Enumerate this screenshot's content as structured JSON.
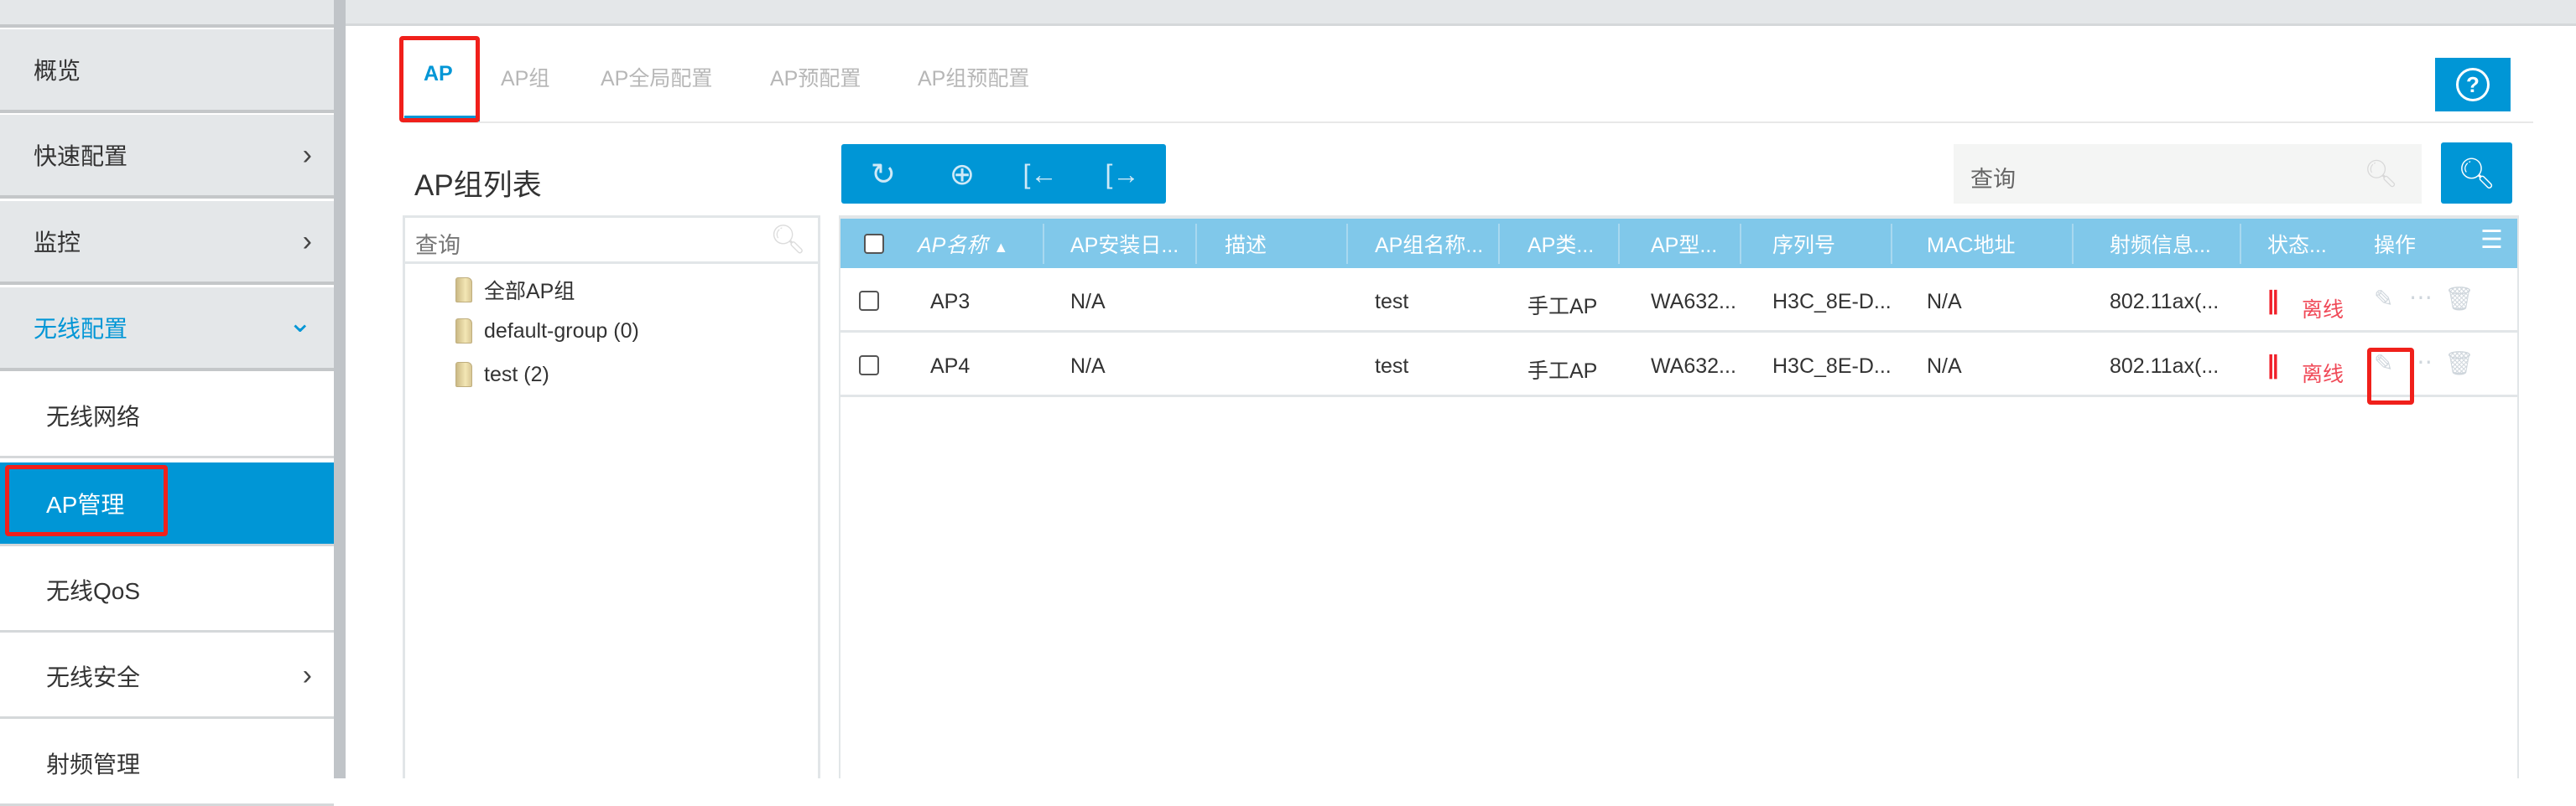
{
  "sidebar": {
    "items": [
      {
        "label": "概览"
      },
      {
        "label": "快速配置",
        "chevron": "›"
      },
      {
        "label": "监控",
        "chevron": "›"
      },
      {
        "label": "无线配置",
        "chevron": "⌄"
      },
      {
        "label": "无线网络"
      },
      {
        "label": "AP管理"
      },
      {
        "label": "无线QoS"
      },
      {
        "label": "无线安全",
        "chevron": "›"
      },
      {
        "label": "射频管理"
      }
    ]
  },
  "tabs": [
    {
      "label": "AP"
    },
    {
      "label": "AP组"
    },
    {
      "label": "AP全局配置"
    },
    {
      "label": "AP预配置"
    },
    {
      "label": "AP组预配置"
    }
  ],
  "help_icon": "?",
  "tree": {
    "title": "AP组列表",
    "search_placeholder": "查询",
    "nodes": [
      {
        "label": "全部AP组"
      },
      {
        "label": "default-group (0)"
      },
      {
        "label": "test (2)"
      }
    ]
  },
  "toolbar": {
    "icons": [
      "refresh-icon",
      "add-icon",
      "import-icon",
      "export-icon"
    ]
  },
  "search": {
    "placeholder": "查询"
  },
  "table": {
    "headers": [
      "AP名称",
      "AP安装日...",
      "描述",
      "AP组名称...",
      "AP类...",
      "AP型...",
      "序列号",
      "MAC地址",
      "射频信息...",
      "状态...",
      "操作"
    ],
    "sort_indicator": "▲",
    "rows": [
      {
        "name": "AP3",
        "install_date": "N/A",
        "desc": "",
        "group": "test",
        "type": "手工AP",
        "model": "WA632...",
        "serial": "H3C_8E-D...",
        "mac": "N/A",
        "radio": "802.11ax(...",
        "status": "离线"
      },
      {
        "name": "AP4",
        "install_date": "N/A",
        "desc": "",
        "group": "test",
        "type": "手工AP",
        "model": "WA632...",
        "serial": "H3C_8E-D...",
        "mac": "N/A",
        "radio": "802.11ax(...",
        "status": "离线"
      }
    ]
  },
  "colors": {
    "accent": "#0096d6",
    "header": "#80c8ea",
    "offline": "#f04a58",
    "highlight": "#f0201b"
  }
}
